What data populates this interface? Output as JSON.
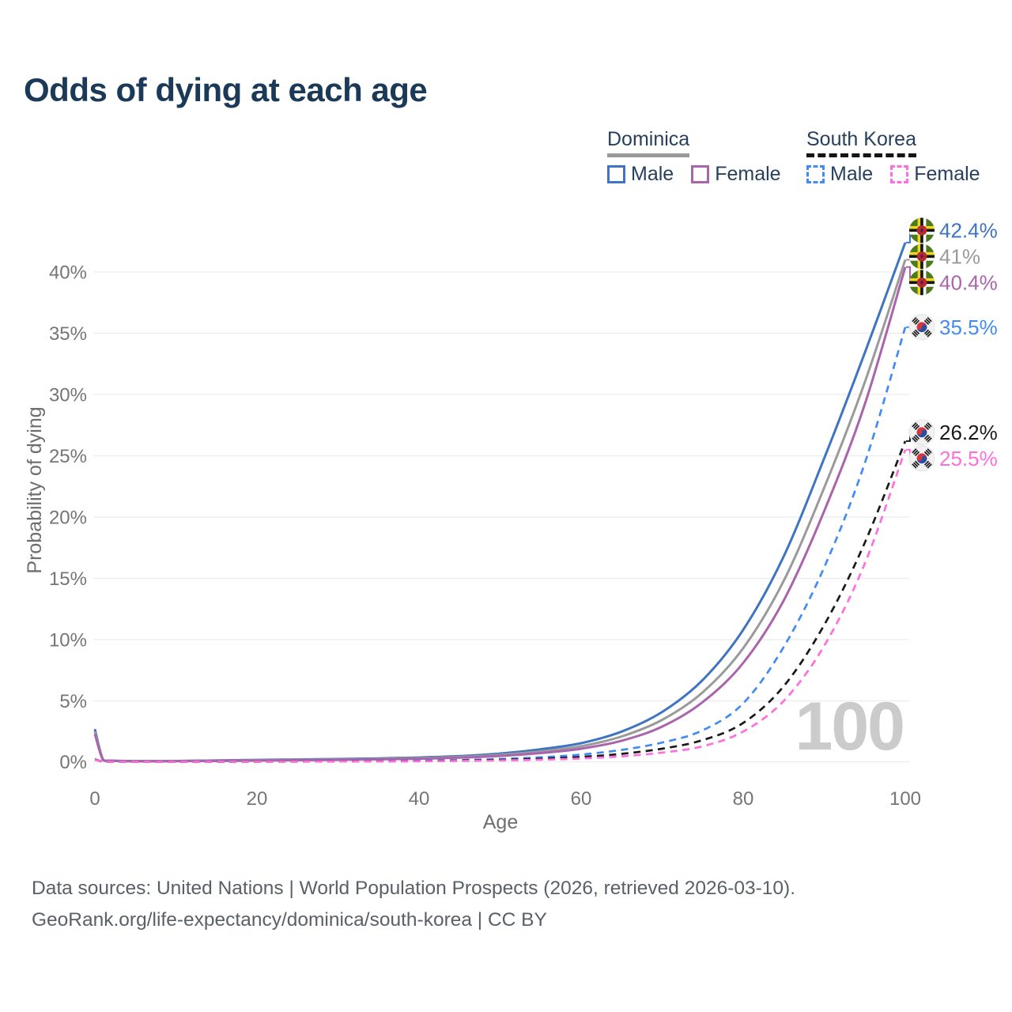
{
  "title": "Odds of dying at each age",
  "legend": {
    "position": "top-right",
    "groups": [
      {
        "country": "Dominica",
        "line_style": "solid",
        "underline_color": "#9a9a9a",
        "items": [
          {
            "label": "Male",
            "color": "#3e74c1",
            "dashed": false
          },
          {
            "label": "Female",
            "color": "#a964ab",
            "dashed": false
          }
        ]
      },
      {
        "country": "South Korea",
        "line_style": "dashed",
        "underline_color": "#151515",
        "items": [
          {
            "label": "Male",
            "color": "#428bf4",
            "dashed": true
          },
          {
            "label": "Female",
            "color": "#ff6edd",
            "dashed": true
          }
        ]
      }
    ]
  },
  "chart_data": {
    "type": "line",
    "title": "Odds of dying at each age",
    "xlabel": "Age",
    "ylabel": "Probability of dying",
    "x_ticks": [
      0,
      20,
      40,
      60,
      80,
      100
    ],
    "y_ticks_pct": [
      0,
      5,
      10,
      15,
      20,
      25,
      30,
      35,
      40
    ],
    "xlim": [
      0,
      100
    ],
    "ylim": [
      0,
      44
    ],
    "grid": true,
    "age_indicator": "100",
    "ages": [
      0,
      1,
      2,
      5,
      10,
      15,
      20,
      25,
      30,
      35,
      40,
      45,
      50,
      55,
      60,
      65,
      70,
      75,
      80,
      85,
      90,
      95,
      100
    ],
    "series": [
      {
        "name": "Dominica Male",
        "country": "Dominica",
        "sex": "Male",
        "flag": "dominica",
        "color": "#3e74c1",
        "dashed": false,
        "end_value": 42.4,
        "end_label": "42.4%",
        "values": [
          2.7,
          0.22,
          0.13,
          0.09,
          0.1,
          0.14,
          0.19,
          0.22,
          0.26,
          0.31,
          0.38,
          0.5,
          0.7,
          1.05,
          1.55,
          2.5,
          4.1,
          6.7,
          10.8,
          16.8,
          24.8,
          33.4,
          42.4
        ]
      },
      {
        "name": "Dominica Both sexes",
        "country": "Dominica",
        "sex": "Both",
        "flag": "dominica",
        "color": "#9a9a9a",
        "dashed": false,
        "end_value": 41.0,
        "end_label": "41%",
        "values": [
          2.5,
          0.2,
          0.12,
          0.08,
          0.09,
          0.12,
          0.16,
          0.19,
          0.22,
          0.27,
          0.33,
          0.43,
          0.6,
          0.88,
          1.3,
          2.1,
          3.45,
          5.7,
          9.3,
          14.8,
          22.4,
          31.0,
          41.0
        ]
      },
      {
        "name": "Dominica Female",
        "country": "Dominica",
        "sex": "Female",
        "flag": "dominica",
        "color": "#a964ab",
        "dashed": false,
        "end_value": 40.4,
        "end_label": "40.4%",
        "values": [
          2.3,
          0.18,
          0.11,
          0.07,
          0.08,
          0.1,
          0.13,
          0.16,
          0.19,
          0.23,
          0.28,
          0.37,
          0.51,
          0.74,
          1.1,
          1.75,
          2.9,
          4.9,
          8.1,
          13.2,
          20.5,
          29.2,
          40.4
        ]
      },
      {
        "name": "South Korea Male",
        "country": "South Korea",
        "sex": "Male",
        "flag": "south-korea",
        "color": "#428bf4",
        "dashed": true,
        "end_value": 35.5,
        "end_label": "35.5%",
        "values": [
          0.25,
          0.04,
          0.02,
          0.01,
          0.01,
          0.03,
          0.05,
          0.06,
          0.07,
          0.09,
          0.12,
          0.17,
          0.26,
          0.4,
          0.62,
          1.0,
          1.6,
          2.6,
          4.8,
          9.4,
          15.9,
          24.4,
          35.5
        ]
      },
      {
        "name": "South Korea Both sexes",
        "country": "South Korea",
        "sex": "Both",
        "flag": "south-korea",
        "color": "#1a1a1a",
        "dashed": true,
        "end_value": 26.2,
        "end_label": "26.2%",
        "values": [
          0.22,
          0.03,
          0.02,
          0.01,
          0.01,
          0.02,
          0.04,
          0.05,
          0.06,
          0.07,
          0.09,
          0.13,
          0.19,
          0.28,
          0.43,
          0.68,
          1.1,
          1.8,
          3.2,
          6.2,
          11.2,
          17.9,
          26.2
        ]
      },
      {
        "name": "South Korea Female",
        "country": "South Korea",
        "sex": "Female",
        "flag": "south-korea",
        "color": "#ff6edd",
        "dashed": true,
        "end_value": 25.5,
        "end_label": "25.5%",
        "values": [
          0.2,
          0.03,
          0.01,
          0.01,
          0.01,
          0.02,
          0.03,
          0.04,
          0.05,
          0.06,
          0.07,
          0.1,
          0.14,
          0.2,
          0.3,
          0.48,
          0.78,
          1.3,
          2.5,
          5.0,
          9.5,
          16.2,
          25.5
        ]
      }
    ]
  },
  "footer": {
    "line1": "Data sources: United Nations | World Population Prospects (2026, retrieved 2026-03-10).",
    "line2": "GeoRank.org/life-expectancy/dominica/south-korea | CC BY"
  }
}
